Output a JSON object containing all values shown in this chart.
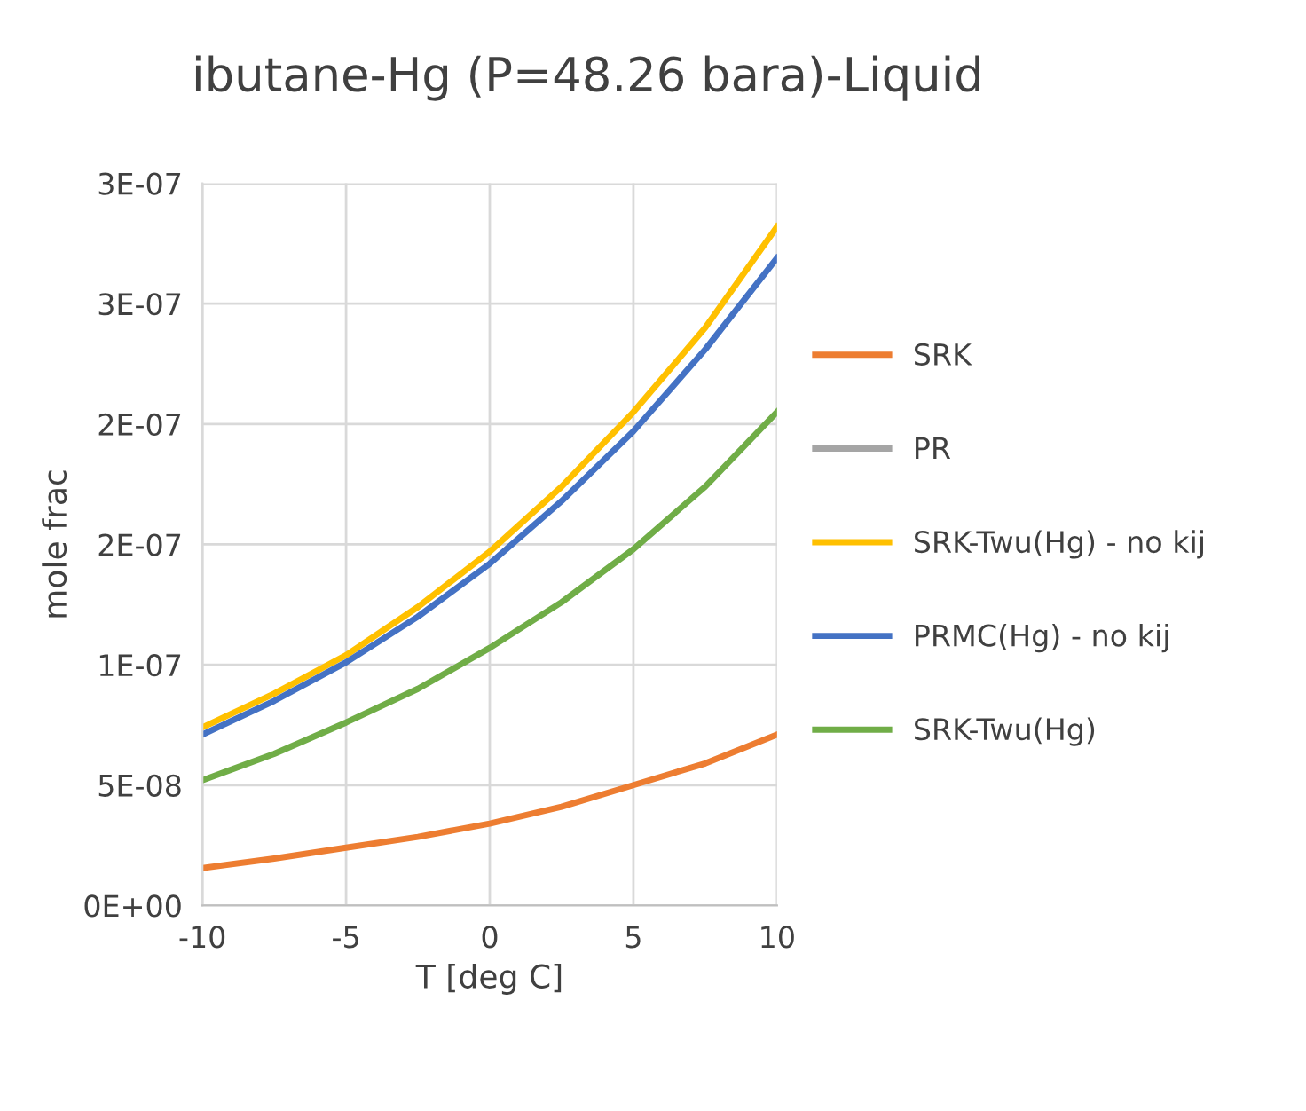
{
  "chart_data": {
    "type": "line",
    "title": "ibutane-Hg (P=48.26 bara)-Liquid",
    "xlabel": "T [deg C]",
    "ylabel": "mole frac",
    "x": [
      -10,
      -7.5,
      -5,
      -2.5,
      0,
      2.5,
      5,
      7.5,
      10
    ],
    "series": [
      {
        "name": "SRK",
        "color": "#ed7d31",
        "values": [
          1.55e-08,
          1.95e-08,
          2.4e-08,
          2.85e-08,
          3.4e-08,
          4.1e-08,
          5e-08,
          5.9e-08,
          7.1e-08
        ]
      },
      {
        "name": "PR",
        "color": "#a5a5a5",
        "values": [
          null,
          null,
          null,
          null,
          null,
          null,
          null,
          null,
          null
        ]
      },
      {
        "name": "SRK-Twu(Hg) - no kij",
        "color": "#ffc000",
        "values": [
          7.4e-08,
          8.8e-08,
          1.04e-07,
          1.24e-07,
          1.47e-07,
          1.74e-07,
          2.05e-07,
          2.4e-07,
          2.82e-07
        ]
      },
      {
        "name": "PRMC(Hg) - no kij",
        "color": "#4472c4",
        "values": [
          7.1e-08,
          8.5e-08,
          1.01e-07,
          1.2e-07,
          1.42e-07,
          1.68e-07,
          1.97e-07,
          2.31e-07,
          2.69e-07
        ]
      },
      {
        "name": "SRK-Twu(Hg)",
        "color": "#70ad47",
        "values": [
          5.2e-08,
          6.3e-08,
          7.6e-08,
          9e-08,
          1.07e-07,
          1.26e-07,
          1.48e-07,
          1.74e-07,
          2.05e-07
        ]
      }
    ],
    "xlim": [
      -10,
      10
    ],
    "xticks": [
      -10,
      -5,
      0,
      5,
      10
    ],
    "ylim": [
      0,
      3e-07
    ],
    "yticks": [
      {
        "value": 0,
        "label": "0E+00"
      },
      {
        "value": 5e-08,
        "label": "5E-08"
      },
      {
        "value": 1e-07,
        "label": "1E-07"
      },
      {
        "value": 1.5e-07,
        "label": "2E-07"
      },
      {
        "value": 2e-07,
        "label": "2E-07"
      },
      {
        "value": 2.5e-07,
        "label": "3E-07"
      },
      {
        "value": 3e-07,
        "label": "3E-07"
      }
    ],
    "grid": true,
    "legend": "right",
    "marker": "none",
    "line_style": "solid"
  }
}
